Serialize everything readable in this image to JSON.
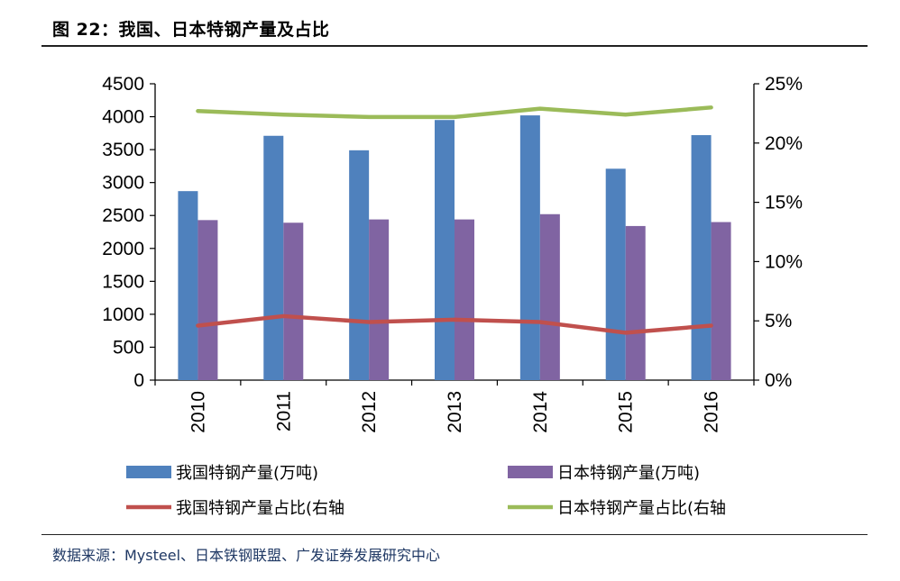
{
  "figure": {
    "title": "图 22：我国、日本特钢产量及占比",
    "source": "数据来源：Mysteel、日本铁钢联盟、广发证券发展研究中心"
  },
  "chart_data": {
    "type": "bar",
    "categories": [
      "2010",
      "2011",
      "2012",
      "2013",
      "2014",
      "2015",
      "2016"
    ],
    "bar_series": [
      {
        "name": "我国特钢产量(万吨)",
        "color": "#4f81bd",
        "values": [
          2870,
          3710,
          3490,
          3950,
          4020,
          3210,
          3720
        ]
      },
      {
        "name": "日本特钢产量(万吨)",
        "color": "#8064a2",
        "values": [
          2430,
          2390,
          2440,
          2440,
          2520,
          2340,
          2400
        ]
      }
    ],
    "line_series": [
      {
        "name": "我国特钢产量占比(右轴",
        "color": "#c0504d",
        "values": [
          4.6,
          5.4,
          4.9,
          5.1,
          4.9,
          4.0,
          4.6
        ]
      },
      {
        "name": "日本特钢产量占比(右轴",
        "color": "#9bbb59",
        "values": [
          22.7,
          22.4,
          22.2,
          22.2,
          22.9,
          22.4,
          23.0
        ]
      }
    ],
    "y_left": {
      "min": 0,
      "max": 4500,
      "step": 500,
      "ticks": [
        "0",
        "500",
        "1000",
        "1500",
        "2000",
        "2500",
        "3000",
        "3500",
        "4000",
        "4500"
      ]
    },
    "y_right": {
      "min": 0,
      "max": 25,
      "step": 5,
      "ticks": [
        "0%",
        "5%",
        "10%",
        "15%",
        "20%",
        "25%"
      ]
    },
    "grid": false,
    "legend_position": "bottom"
  }
}
